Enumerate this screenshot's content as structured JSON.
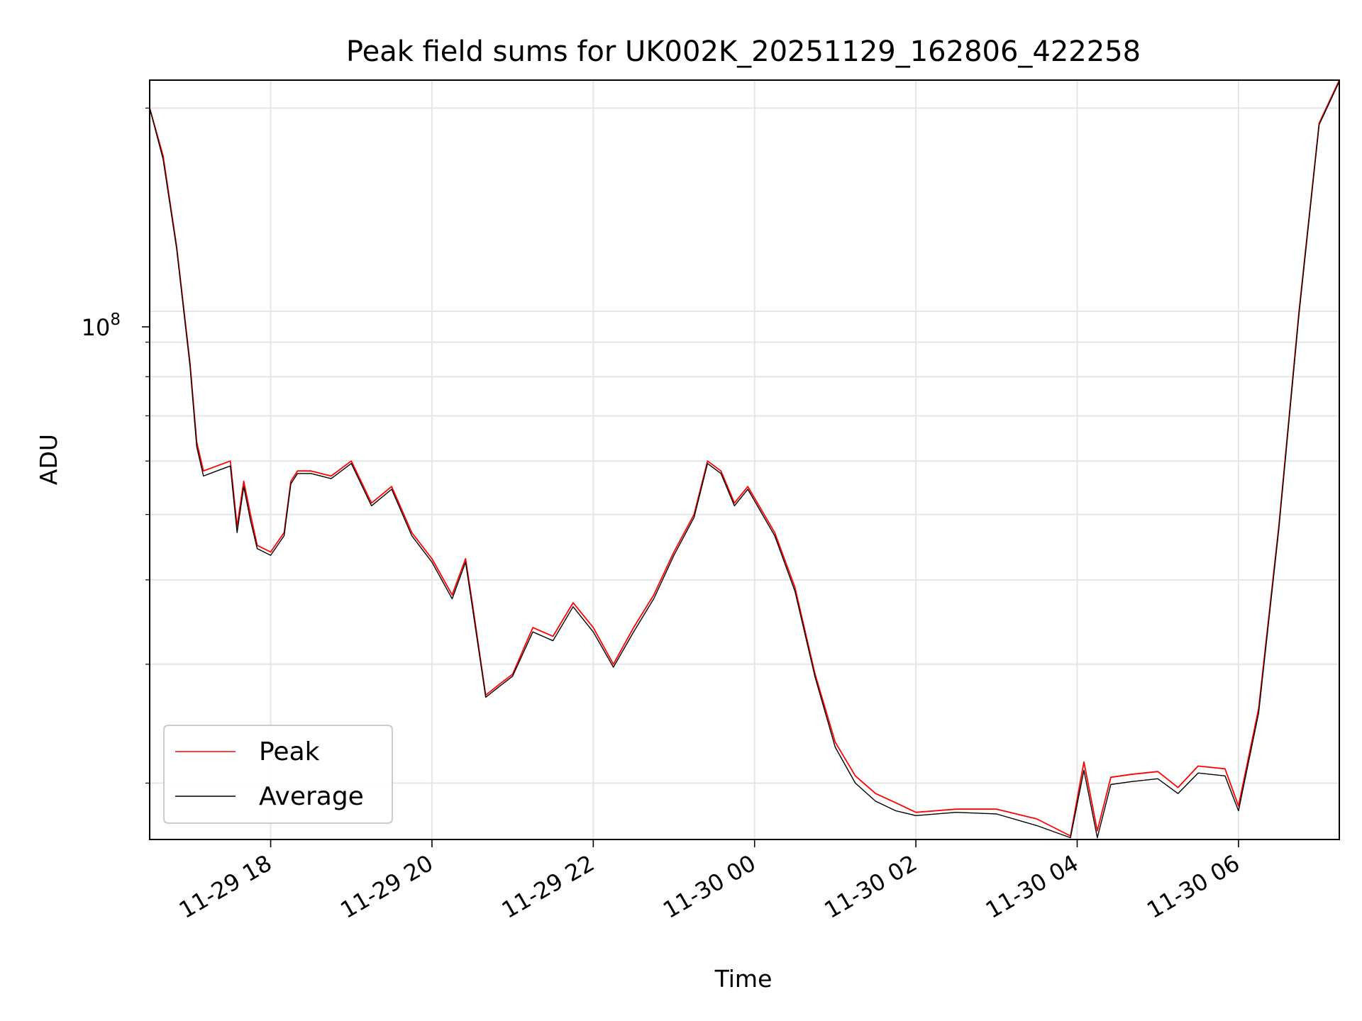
{
  "chart_data": {
    "type": "line",
    "title": "Peak field sums for UK002K_20251129_162806_422258",
    "xlabel": "Time",
    "ylabel": "ADU",
    "yscale": "log",
    "ylim": [
      16500000,
      220000000
    ],
    "xlim": [
      "2025-11-29T16:30",
      "2025-11-30T07:15"
    ],
    "x_tick_labels": [
      "11-29 18",
      "11-29 20",
      "11-29 22",
      "11-30 00",
      "11-30 02",
      "11-30 04",
      "11-30 06"
    ],
    "y_tick_label": {
      "base": "10",
      "exponent": "8"
    },
    "grid": true,
    "legend_position": "lower-left",
    "colors": {
      "Peak": "#ff0000",
      "Average": "#000000"
    },
    "series": [
      {
        "name": "Peak",
        "x": [
          "2025-11-29T16:30",
          "2025-11-29T16:40",
          "2025-11-29T16:50",
          "2025-11-29T17:00",
          "2025-11-29T17:05",
          "2025-11-29T17:10",
          "2025-11-29T17:20",
          "2025-11-29T17:30",
          "2025-11-29T17:35",
          "2025-11-29T17:40",
          "2025-11-29T17:45",
          "2025-11-29T17:50",
          "2025-11-29T18:00",
          "2025-11-29T18:10",
          "2025-11-29T18:15",
          "2025-11-29T18:20",
          "2025-11-29T18:30",
          "2025-11-29T18:45",
          "2025-11-29T19:00",
          "2025-11-29T19:15",
          "2025-11-29T19:30",
          "2025-11-29T19:45",
          "2025-11-29T20:00",
          "2025-11-29T20:15",
          "2025-11-29T20:25",
          "2025-11-29T20:30",
          "2025-11-29T20:40",
          "2025-11-29T20:50",
          "2025-11-29T21:00",
          "2025-11-29T21:15",
          "2025-11-29T21:30",
          "2025-11-29T21:45",
          "2025-11-29T22:00",
          "2025-11-29T22:15",
          "2025-11-29T22:30",
          "2025-11-29T22:45",
          "2025-11-29T23:00",
          "2025-11-29T23:15",
          "2025-11-29T23:25",
          "2025-11-29T23:35",
          "2025-11-29T23:45",
          "2025-11-29T23:55",
          "2025-11-30T00:15",
          "2025-11-30T00:30",
          "2025-11-30T00:45",
          "2025-11-30T01:00",
          "2025-11-30T01:15",
          "2025-11-30T01:30",
          "2025-11-30T01:45",
          "2025-11-30T02:00",
          "2025-11-30T02:30",
          "2025-11-30T03:00",
          "2025-11-30T03:30",
          "2025-11-30T03:55",
          "2025-11-30T04:05",
          "2025-11-30T04:15",
          "2025-11-30T04:25",
          "2025-11-30T04:40",
          "2025-11-30T05:00",
          "2025-11-30T05:15",
          "2025-11-30T05:30",
          "2025-11-30T05:50",
          "2025-11-30T06:00",
          "2025-11-30T06:15",
          "2025-11-30T06:30",
          "2025-11-30T06:45",
          "2025-11-30T07:00",
          "2025-11-30T07:15"
        ],
        "y": [
          200000000,
          170000000,
          125000000,
          84000000,
          64000000,
          58000000,
          59000000,
          60000000,
          48000000,
          56000000,
          50000000,
          45000000,
          44000000,
          47000000,
          56000000,
          58000000,
          58000000,
          57000000,
          60000000,
          52000000,
          55000000,
          47000000,
          43000000,
          38000000,
          43000000,
          37000000,
          27000000,
          28000000,
          29000000,
          34000000,
          33000000,
          37000000,
          34000000,
          30000000,
          34000000,
          38000000,
          44000000,
          50000000,
          60000000,
          58000000,
          52000000,
          55000000,
          47000000,
          39000000,
          29000000,
          23000000,
          20500000,
          19300000,
          18700000,
          18100000,
          18300000,
          18300000,
          17700000,
          16700000,
          21500000,
          17000000,
          20400000,
          20600000,
          20800000,
          19700000,
          21200000,
          21000000,
          18500000,
          25800000,
          48000000,
          100000000,
          190000000,
          220000000
        ]
      },
      {
        "name": "Average",
        "x": [
          "2025-11-29T16:30",
          "2025-11-29T16:40",
          "2025-11-29T16:50",
          "2025-11-29T17:00",
          "2025-11-29T17:05",
          "2025-11-29T17:10",
          "2025-11-29T17:20",
          "2025-11-29T17:30",
          "2025-11-29T17:35",
          "2025-11-29T17:40",
          "2025-11-29T17:45",
          "2025-11-29T17:50",
          "2025-11-29T18:00",
          "2025-11-29T18:10",
          "2025-11-29T18:15",
          "2025-11-29T18:20",
          "2025-11-29T18:30",
          "2025-11-29T18:45",
          "2025-11-29T19:00",
          "2025-11-29T19:15",
          "2025-11-29T19:30",
          "2025-11-29T19:45",
          "2025-11-29T20:00",
          "2025-11-29T20:15",
          "2025-11-29T20:25",
          "2025-11-29T20:30",
          "2025-11-29T20:40",
          "2025-11-29T20:50",
          "2025-11-29T21:00",
          "2025-11-29T21:15",
          "2025-11-29T21:30",
          "2025-11-29T21:45",
          "2025-11-29T22:00",
          "2025-11-29T22:15",
          "2025-11-29T22:30",
          "2025-11-29T22:45",
          "2025-11-29T23:00",
          "2025-11-29T23:15",
          "2025-11-29T23:25",
          "2025-11-29T23:35",
          "2025-11-29T23:45",
          "2025-11-29T23:55",
          "2025-11-30T00:15",
          "2025-11-30T00:30",
          "2025-11-30T00:45",
          "2025-11-30T01:00",
          "2025-11-30T01:15",
          "2025-11-30T01:30",
          "2025-11-30T01:45",
          "2025-11-30T02:00",
          "2025-11-30T02:30",
          "2025-11-30T03:00",
          "2025-11-30T03:30",
          "2025-11-30T03:55",
          "2025-11-30T04:05",
          "2025-11-30T04:15",
          "2025-11-30T04:25",
          "2025-11-30T04:40",
          "2025-11-30T05:00",
          "2025-11-30T05:15",
          "2025-11-30T05:30",
          "2025-11-30T05:50",
          "2025-11-30T06:00",
          "2025-11-30T06:15",
          "2025-11-30T06:30",
          "2025-11-30T06:45",
          "2025-11-30T07:00",
          "2025-11-30T07:15"
        ],
        "y": [
          200000000,
          168000000,
          124000000,
          83000000,
          63000000,
          57000000,
          58000000,
          59000000,
          47000000,
          55000000,
          49000000,
          44500000,
          43500000,
          46500000,
          55500000,
          57500000,
          57500000,
          56500000,
          59500000,
          51500000,
          54500000,
          46500000,
          42500000,
          37500000,
          42500000,
          36500000,
          26800000,
          27800000,
          28800000,
          33500000,
          32500000,
          36500000,
          33500000,
          29700000,
          33500000,
          37500000,
          43500000,
          49500000,
          59500000,
          57500000,
          51500000,
          54500000,
          46500000,
          38500000,
          28700000,
          22600000,
          20000000,
          18800000,
          18200000,
          17900000,
          18100000,
          18000000,
          17300000,
          16600000,
          20900000,
          16600000,
          19900000,
          20100000,
          20300000,
          19300000,
          20700000,
          20500000,
          18200000,
          25400000,
          47500000,
          99000000,
          189000000,
          219000000
        ]
      }
    ]
  }
}
